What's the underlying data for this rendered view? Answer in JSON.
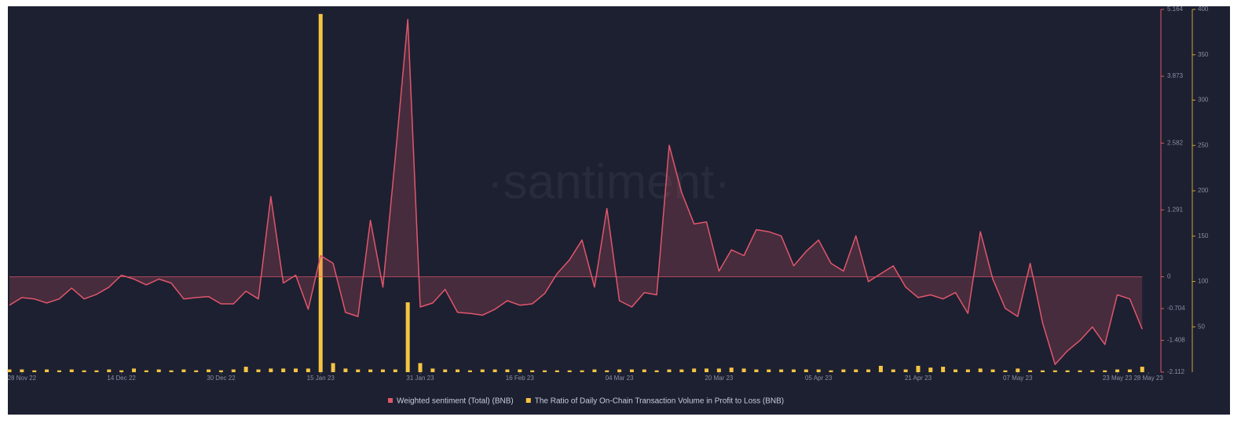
{
  "chart_data": {
    "type": "line-bar",
    "watermark": "·santiment·",
    "x": [
      "2022-11-26",
      "2022-11-28",
      "2022-11-30",
      "2022-12-02",
      "2022-12-04",
      "2022-12-06",
      "2022-12-08",
      "2022-12-10",
      "2022-12-12",
      "2022-12-14",
      "2022-12-16",
      "2022-12-18",
      "2022-12-20",
      "2022-12-22",
      "2022-12-24",
      "2022-12-26",
      "2022-12-28",
      "2022-12-30",
      "2023-01-01",
      "2023-01-03",
      "2023-01-05",
      "2023-01-07",
      "2023-01-09",
      "2023-01-11",
      "2023-01-13",
      "2023-01-15",
      "2023-01-17",
      "2023-01-19",
      "2023-01-21",
      "2023-01-23",
      "2023-01-25",
      "2023-01-27",
      "2023-01-29",
      "2023-01-31",
      "2023-02-02",
      "2023-02-04",
      "2023-02-06",
      "2023-02-08",
      "2023-02-10",
      "2023-02-12",
      "2023-02-14",
      "2023-02-16",
      "2023-02-18",
      "2023-02-20",
      "2023-02-22",
      "2023-02-24",
      "2023-02-26",
      "2023-02-28",
      "2023-03-02",
      "2023-03-04",
      "2023-03-06",
      "2023-03-08",
      "2023-03-10",
      "2023-03-12",
      "2023-03-14",
      "2023-03-16",
      "2023-03-18",
      "2023-03-20",
      "2023-03-22",
      "2023-03-24",
      "2023-03-26",
      "2023-03-28",
      "2023-03-30",
      "2023-04-01",
      "2023-04-03",
      "2023-04-05",
      "2023-04-07",
      "2023-04-09",
      "2023-04-11",
      "2023-04-13",
      "2023-04-15",
      "2023-04-17",
      "2023-04-19",
      "2023-04-21",
      "2023-04-23",
      "2023-04-25",
      "2023-04-27",
      "2023-04-29",
      "2023-05-01",
      "2023-05-03",
      "2023-05-05",
      "2023-05-07",
      "2023-05-09",
      "2023-05-11",
      "2023-05-13",
      "2023-05-15",
      "2023-05-17",
      "2023-05-19",
      "2023-05-21",
      "2023-05-23",
      "2023-05-25",
      "2023-05-27"
    ],
    "xlim": [
      "2022-11-26",
      "2023-05-30"
    ],
    "xticks": [
      {
        "value": "2022-11-28",
        "label": "28 Nov 22"
      },
      {
        "value": "2022-12-14",
        "label": "14 Dec 22"
      },
      {
        "value": "2022-12-30",
        "label": "30 Dec 22"
      },
      {
        "value": "2023-01-15",
        "label": "15 Jan 23"
      },
      {
        "value": "2023-01-31",
        "label": "31 Jan 23"
      },
      {
        "value": "2023-02-16",
        "label": "16 Feb 23"
      },
      {
        "value": "2023-03-04",
        "label": "04 Mar 23"
      },
      {
        "value": "2023-03-20",
        "label": "20 Mar 23"
      },
      {
        "value": "2023-04-05",
        "label": "05 Apr 23"
      },
      {
        "value": "2023-04-21",
        "label": "21 Apr 23"
      },
      {
        "value": "2023-05-07",
        "label": "07 May 23"
      },
      {
        "value": "2023-05-23",
        "label": "23 May 23"
      },
      {
        "value": "2023-05-28",
        "label": "28 May 23"
      }
    ],
    "ylim": [
      -2.112,
      5.164
    ],
    "yticks": [
      5.164,
      3.873,
      2.582,
      1.291,
      0,
      -0.704,
      -1.408,
      -2.112
    ],
    "y2lim": [
      0,
      400
    ],
    "y2ticks": [
      400,
      350,
      300,
      250,
      200,
      150,
      100,
      50
    ],
    "series": [
      {
        "name": "Weighted sentiment (Total) (BNB)",
        "color": "#e0566b",
        "axis": "y",
        "kind": "area-line",
        "values": [
          -0.63,
          -0.46,
          -0.49,
          -0.58,
          -0.49,
          -0.25,
          -0.49,
          -0.39,
          -0.23,
          0.03,
          -0.05,
          -0.18,
          -0.05,
          -0.14,
          -0.49,
          -0.46,
          -0.44,
          -0.6,
          -0.6,
          -0.32,
          -0.49,
          1.55,
          -0.14,
          0.03,
          -0.72,
          0.41,
          0.26,
          -0.79,
          -0.88,
          1.09,
          -0.23,
          2.31,
          4.97,
          -0.67,
          -0.58,
          -0.28,
          -0.79,
          -0.81,
          -0.85,
          -0.72,
          -0.53,
          -0.63,
          -0.6,
          -0.37,
          0.06,
          0.33,
          0.71,
          -0.23,
          1.32,
          -0.53,
          -0.67,
          -0.35,
          -0.4,
          2.54,
          1.63,
          1.02,
          1.06,
          0.11,
          0.52,
          0.41,
          0.91,
          0.87,
          0.79,
          0.21,
          0.49,
          0.71,
          0.26,
          0.11,
          0.79,
          -0.11,
          0.06,
          0.21,
          -0.23,
          -0.46,
          -0.4,
          -0.49,
          -0.35,
          -0.81,
          0.87,
          -0.05,
          -0.7,
          -0.88,
          0.26,
          -1.02,
          -1.94,
          -1.64,
          -1.41,
          -1.11,
          -1.5,
          -0.4,
          -0.49,
          -1.16
        ]
      },
      {
        "name": "The Ratio of Daily On-Chain Transaction Volume in Profit to Loss (BNB)",
        "color": "#f5c542",
        "axis": "y2",
        "kind": "bar",
        "values": [
          3,
          3,
          2,
          3,
          2,
          3,
          2,
          2,
          3,
          2,
          4,
          2,
          3,
          2,
          3,
          2,
          3,
          2,
          3,
          6,
          3,
          4,
          4,
          4,
          4,
          395,
          10,
          4,
          3,
          3,
          3,
          3,
          77,
          10,
          4,
          3,
          3,
          2,
          3,
          3,
          3,
          3,
          2,
          2,
          2,
          2,
          2,
          3,
          2,
          3,
          3,
          3,
          2,
          3,
          3,
          4,
          4,
          4,
          5,
          4,
          3,
          3,
          3,
          3,
          3,
          3,
          2,
          3,
          3,
          3,
          7,
          3,
          3,
          7,
          5,
          6,
          3,
          3,
          4,
          3,
          2,
          4,
          2,
          2,
          2,
          2,
          2,
          2,
          2,
          3,
          3,
          6
        ]
      }
    ]
  }
}
